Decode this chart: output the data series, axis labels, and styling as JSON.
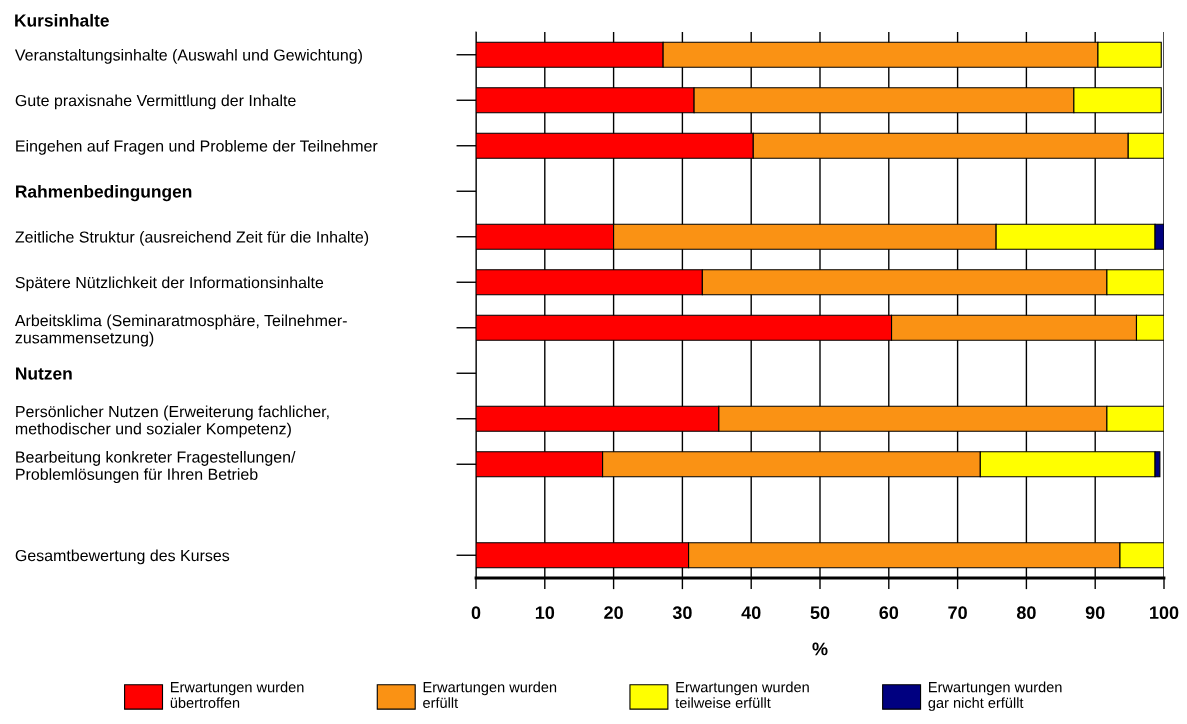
{
  "chart_data": {
    "type": "bar",
    "orientation": "horizontal",
    "stacked": true,
    "title": "Kursinhalte",
    "xlabel": "%",
    "categories": [
      "Veranstaltungsinhalte (Auswahl und Gewichtung)",
      "Gute praxisnahe Vermittlung der Inhalte",
      "Eingehen auf Fragen und Probleme der Teilnehmer",
      "Rahmenbedingungen",
      "Zeitliche Struktur (ausreichend Zeit für die Inhalte)",
      "Spätere Nützlichkeit der Informationsinhalte",
      "Arbeitsklima (Seminaratmosphäre, Teilnehmer-\nzusammensetzung)",
      "Nutzen",
      "Persönlicher Nutzen (Erweiterung fachlicher,\nmethodischer und sozialer Kompetenz)",
      "Bearbeitung konkreter Fragestellungen/\nProblemlösungen für Ihren Betrieb",
      null,
      "Gesamtbewertung des Kurses"
    ],
    "series": [
      {
        "name": "Erwartungen wurden\nübertroffen",
        "color": "#ff0000",
        "values": [
          27.2,
          31.7,
          40.3,
          null,
          20.0,
          32.9,
          60.4,
          null,
          35.3,
          18.4,
          null,
          30.9
        ]
      },
      {
        "name": "Erwartungen wurden\nerfüllt",
        "color": "#fa9214",
        "values": [
          63.2,
          55.2,
          54.5,
          null,
          55.6,
          58.8,
          35.6,
          null,
          56.4,
          54.9,
          null,
          62.7
        ]
      },
      {
        "name": "Erwartungen wurden\nteilweise erfüllt",
        "color": "#ffff00",
        "values": [
          9.2,
          12.7,
          5.2,
          null,
          23.1,
          8.3,
          4.0,
          null,
          8.3,
          25.4,
          null,
          6.4
        ]
      },
      {
        "name": "Erwartungen wurden\ngar nicht erfüllt",
        "color": "#000080",
        "values": [
          null,
          null,
          null,
          null,
          1.3,
          null,
          null,
          null,
          null,
          0.7,
          null,
          null
        ]
      }
    ],
    "xlim": [
      0,
      100
    ],
    "xticks": [
      0,
      10,
      20,
      30,
      40,
      50,
      60,
      70,
      80,
      90,
      100
    ],
    "grid": "x",
    "legend": "bottom"
  }
}
